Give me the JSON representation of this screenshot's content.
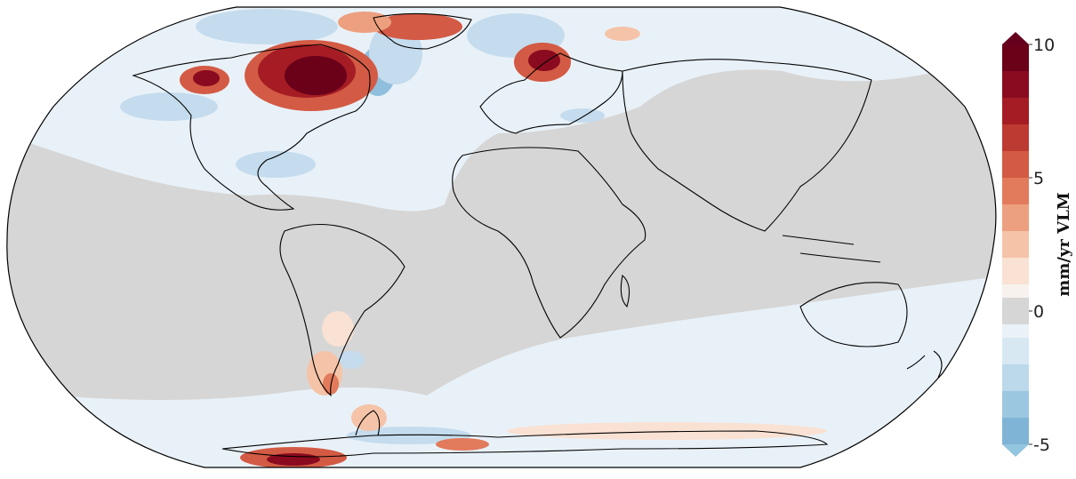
{
  "colorbar": {
    "title": "mm/yr VLM",
    "ticks": [
      {
        "value": 10,
        "label": "10"
      },
      {
        "value": 5,
        "label": "5"
      },
      {
        "value": 0,
        "label": "0"
      },
      {
        "value": -5,
        "label": "-5"
      }
    ],
    "range": [
      -5,
      10
    ],
    "extend": "both",
    "levels": [
      {
        "from": 9,
        "to": 10,
        "color": "#6b0019"
      },
      {
        "from": 8,
        "to": 9,
        "color": "#8a0a1f"
      },
      {
        "from": 7,
        "to": 8,
        "color": "#a51c24"
      },
      {
        "from": 6,
        "to": 7,
        "color": "#bd3a33"
      },
      {
        "from": 5,
        "to": 6,
        "color": "#d35a44"
      },
      {
        "from": 4,
        "to": 5,
        "color": "#e27a5c"
      },
      {
        "from": 3,
        "to": 4,
        "color": "#eda07f"
      },
      {
        "from": 2,
        "to": 3,
        "color": "#f5c3a8"
      },
      {
        "from": 1,
        "to": 2,
        "color": "#f9e1d3"
      },
      {
        "from": 0.5,
        "to": 1,
        "color": "#f7f2ee"
      },
      {
        "from": -0.5,
        "to": 0.5,
        "color": "#d6d6d6"
      },
      {
        "from": -1,
        "to": -0.5,
        "color": "#eaf2f8"
      },
      {
        "from": -2,
        "to": -1,
        "color": "#d7e8f3"
      },
      {
        "from": -3,
        "to": -2,
        "color": "#bcd9eb"
      },
      {
        "from": -4,
        "to": -3,
        "color": "#9cc7e1"
      },
      {
        "from": -5,
        "to": -4,
        "color": "#7fb4d6"
      }
    ],
    "over_color": "#67001f",
    "under_color": "#92c5de"
  },
  "map": {
    "projection": "Robinson",
    "colors": {
      "neutral": "#d6d6d6",
      "ocean_light_blue": "#e9f1f8",
      "blue": "#c4dced",
      "dark_blue": "#8fbfdc",
      "red_light": "#f5c3a8",
      "red_mid": "#d35a44",
      "red_dark": "#8a0a1f",
      "coast": "#000000",
      "outline": "#000000"
    }
  }
}
